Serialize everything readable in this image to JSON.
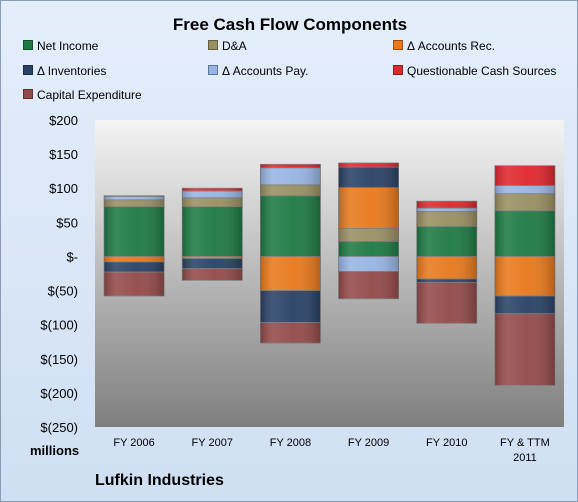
{
  "title": "Free Cash Flow Components",
  "units_label": "millions",
  "company_label": "Lufkin Industries",
  "colors": {
    "net_income": "#1e7a45",
    "da": "#9a8f62",
    "accounts_rec": "#e8791c",
    "inventories": "#2a4266",
    "accounts_pay": "#97b5e3",
    "questionable": "#e0272d",
    "capex": "#944a4a"
  },
  "chart_data": {
    "type": "bar",
    "stacked": true,
    "title": "Free Cash Flow Components",
    "ylabel": "millions",
    "ylim": [
      -250,
      200
    ],
    "y_ticks": [
      200,
      150,
      100,
      50,
      0,
      -50,
      -100,
      -150,
      -200,
      -250
    ],
    "y_tick_labels": [
      "$200",
      "$150",
      "$100",
      "$50",
      "$-",
      "$(50)",
      "$(100)",
      "$(150)",
      "$(200)",
      "$(250)"
    ],
    "categories": [
      "FY 2006",
      "FY 2007",
      "FY 2008",
      "FY 2009",
      "FY 2010",
      "FY & TTM 2011"
    ],
    "category_lines": [
      [
        "FY 2006"
      ],
      [
        "FY 2007"
      ],
      [
        "FY 2008"
      ],
      [
        "FY 2009"
      ],
      [
        "FY 2010"
      ],
      [
        "FY & TTM",
        "2011"
      ]
    ],
    "legend_position": "top",
    "grid": false,
    "series": [
      {
        "name": "Net Income",
        "key": "net_income",
        "values": [
          73,
          73,
          89,
          22,
          44,
          67
        ]
      },
      {
        "name": "D&A",
        "key": "da",
        "values": [
          10,
          13,
          16,
          19,
          22,
          25
        ]
      },
      {
        "name": "Δ Accounts Rec.",
        "key": "accounts_rec",
        "values": [
          -8,
          -3,
          -50,
          60,
          -33,
          -58
        ]
      },
      {
        "name": "Δ Inventories",
        "key": "inventories",
        "values": [
          -15,
          -15,
          -47,
          30,
          -5,
          -26
        ]
      },
      {
        "name": "Δ Accounts Pay.",
        "key": "accounts_pay",
        "values": [
          5,
          10,
          25,
          -22,
          5,
          12
        ]
      },
      {
        "name": "Questionable Cash Sources",
        "key": "questionable",
        "values": [
          1,
          4,
          5,
          6,
          10,
          29
        ]
      },
      {
        "name": "Capital Expenditure",
        "key": "capex",
        "values": [
          -35,
          -17,
          -30,
          -40,
          -60,
          -105
        ]
      }
    ]
  }
}
